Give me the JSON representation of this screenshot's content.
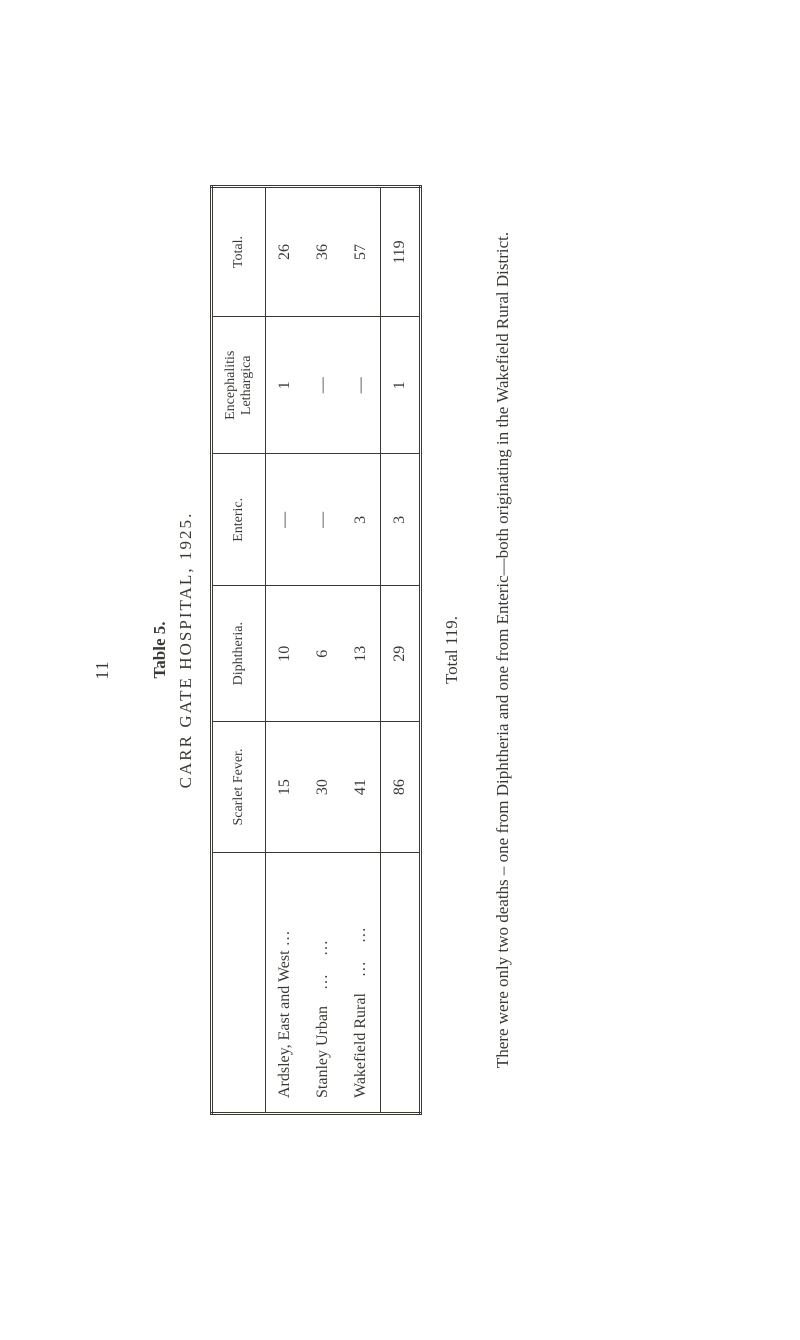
{
  "page_number": "11",
  "table_label": "Table 5.",
  "table_title": "CARR GATE HOSPITAL, 1925.",
  "columns": {
    "blank": "",
    "scarlet": "Scarlet Fever.",
    "diphtheria": "Diphtheria.",
    "enteric": "Enteric.",
    "encephalitis": "Encephalitis Lethargica",
    "total": "Total."
  },
  "rows": [
    {
      "label": "Ardsley, East and West",
      "suffix": "…",
      "scarlet": "15",
      "diphtheria": "10",
      "enteric": "—",
      "encephalitis": "1",
      "total": "26"
    },
    {
      "label": "Stanley Urban",
      "suffix": "…",
      "scarlet": "30",
      "diphtheria": "6",
      "enteric": "—",
      "encephalitis": "—",
      "total": "36"
    },
    {
      "label": "Wakefield Rural",
      "suffix": "…",
      "scarlet": "41",
      "diphtheria": "13",
      "enteric": "3",
      "encephalitis": "—",
      "total": "57"
    }
  ],
  "totals": {
    "label": "",
    "scarlet": "86",
    "diphtheria": "29",
    "enteric": "3",
    "encephalitis": "1",
    "total": "119"
  },
  "grand_total_line": "Total   119.",
  "footnote": "There were only two deaths – one from Diphtheria and one from Enteric—both originating in the Wakefield Rural District."
}
